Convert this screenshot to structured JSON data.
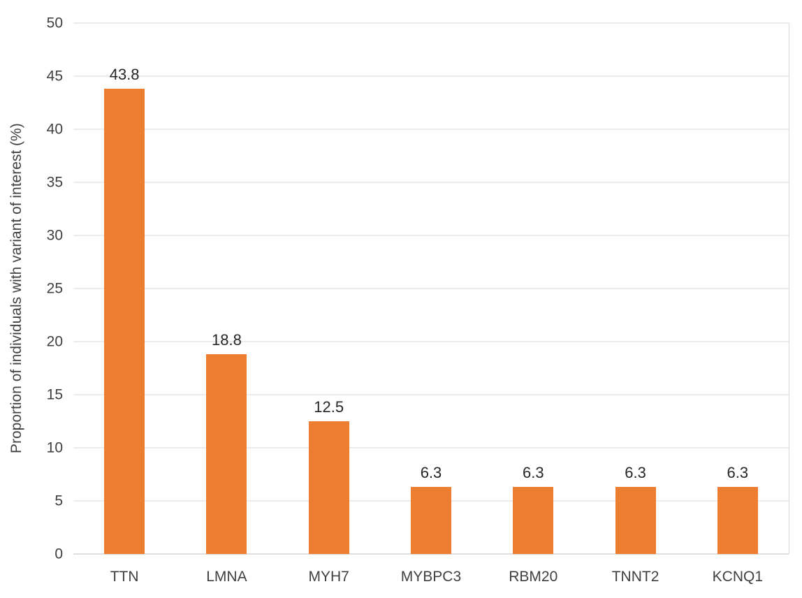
{
  "chart_data": {
    "type": "bar",
    "title": "",
    "xlabel": "",
    "ylabel": "Proportion of individuals with variant of interest (%)",
    "categories": [
      "TTN",
      "LMNA",
      "MYH7",
      "MYBPC3",
      "RBM20",
      "TNNT2",
      "KCNQ1"
    ],
    "values": [
      43.8,
      18.8,
      12.5,
      6.3,
      6.3,
      6.3,
      6.3
    ],
    "data_labels": [
      "43.8",
      "18.8",
      "12.5",
      "6.3",
      "6.3",
      "6.3",
      "6.3"
    ],
    "ylim": [
      0,
      50
    ],
    "yticks": [
      0,
      5,
      10,
      15,
      20,
      25,
      30,
      35,
      40,
      45,
      50
    ],
    "grid": true,
    "legend": false,
    "colors": {
      "bar": "#ED7D31",
      "gridline": "#D9D9D9",
      "axis_line": "#BFBFBF",
      "tick_text": "#404040",
      "data_label_text": "#262626"
    }
  }
}
